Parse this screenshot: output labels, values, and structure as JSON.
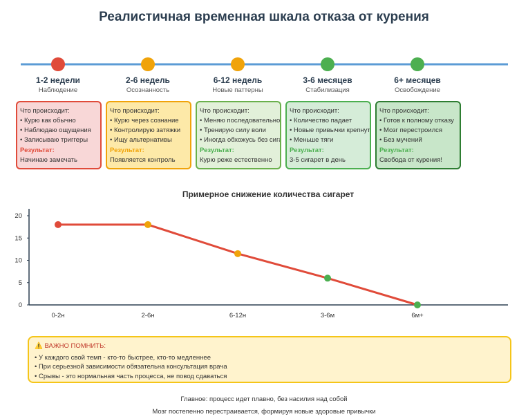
{
  "title": "Реалистичная временная шкала отказа от курения",
  "stages": [
    {
      "period": "1-2 недели",
      "phase": "Наблюдение",
      "color": "#e04b3a",
      "heading": "Что происходит:",
      "items": [
        "• Курю как обычно",
        "• Наблюдаю ощущения",
        "• Записываю триггеры"
      ],
      "result_label": "Результат:",
      "result": "Начинаю замечать"
    },
    {
      "period": "2-6 недель",
      "phase": "Осознанность",
      "color": "#f0a30a",
      "heading": "Что происходит:",
      "items": [
        "• Курю через сознание",
        "• Контролирую затяжки",
        "• Ищу альтернативы"
      ],
      "result_label": "Результат:",
      "result": "Появляется контроль"
    },
    {
      "period": "6-12 недель",
      "phase": "Новые паттерны",
      "color": "#f0a30a",
      "heading": "Что происходит:",
      "items": [
        "• Меняю последовательность",
        "• Тренирую силу воли",
        "• Иногда обхожусь без сигарет"
      ],
      "result_label": "Результат:",
      "result": "Курю реже естественно"
    },
    {
      "period": "3-6 месяцев",
      "phase": "Стабилизация",
      "color": "#4caf50",
      "heading": "Что происходит:",
      "items": [
        "• Количество падает",
        "• Новые привычки крепнут",
        "• Меньше тяги"
      ],
      "result_label": "Результат:",
      "result": "3-5 сигарет в день"
    },
    {
      "period": "6+ месяцев",
      "phase": "Освобождение",
      "color": "#4caf50",
      "heading": "Что происходит:",
      "items": [
        "• Готов к полному отказу",
        "• Мозг перестроился",
        "• Без мучений"
      ],
      "result_label": "Результат:",
      "result": "Свобода от курения!"
    }
  ],
  "chart_data": {
    "type": "line",
    "title": "Примерное снижение количества сигарет",
    "categories": [
      "0-2н",
      "2-6н",
      "6-12н",
      "3-6м",
      "6м+"
    ],
    "series": [
      {
        "color": "#e04b3a",
        "values": [
          18,
          18,
          11.5,
          6,
          0
        ],
        "point_colors": [
          "#e04b3a",
          "#f0a30a",
          "#f0a30a",
          "#4caf50",
          "#4caf50"
        ]
      }
    ],
    "ylim": [
      0,
      20
    ],
    "yticks": [
      0,
      5,
      10,
      15,
      20
    ]
  },
  "note": {
    "title": "⚠️ ВАЖНО ПОМНИТЬ:",
    "items": [
      "• У каждого свой темп - кто-то быстрее, кто-то медленнее",
      "• При серьезной зависимости обязательна консультация врача",
      "• Срывы - это нормальная часть процесса, не повод сдаваться"
    ]
  },
  "footer": [
    "Главное: процесс идет плавно, без насилия над собой",
    "Мозг постепенно перестраивается, формируя новые здоровые привычки"
  ]
}
